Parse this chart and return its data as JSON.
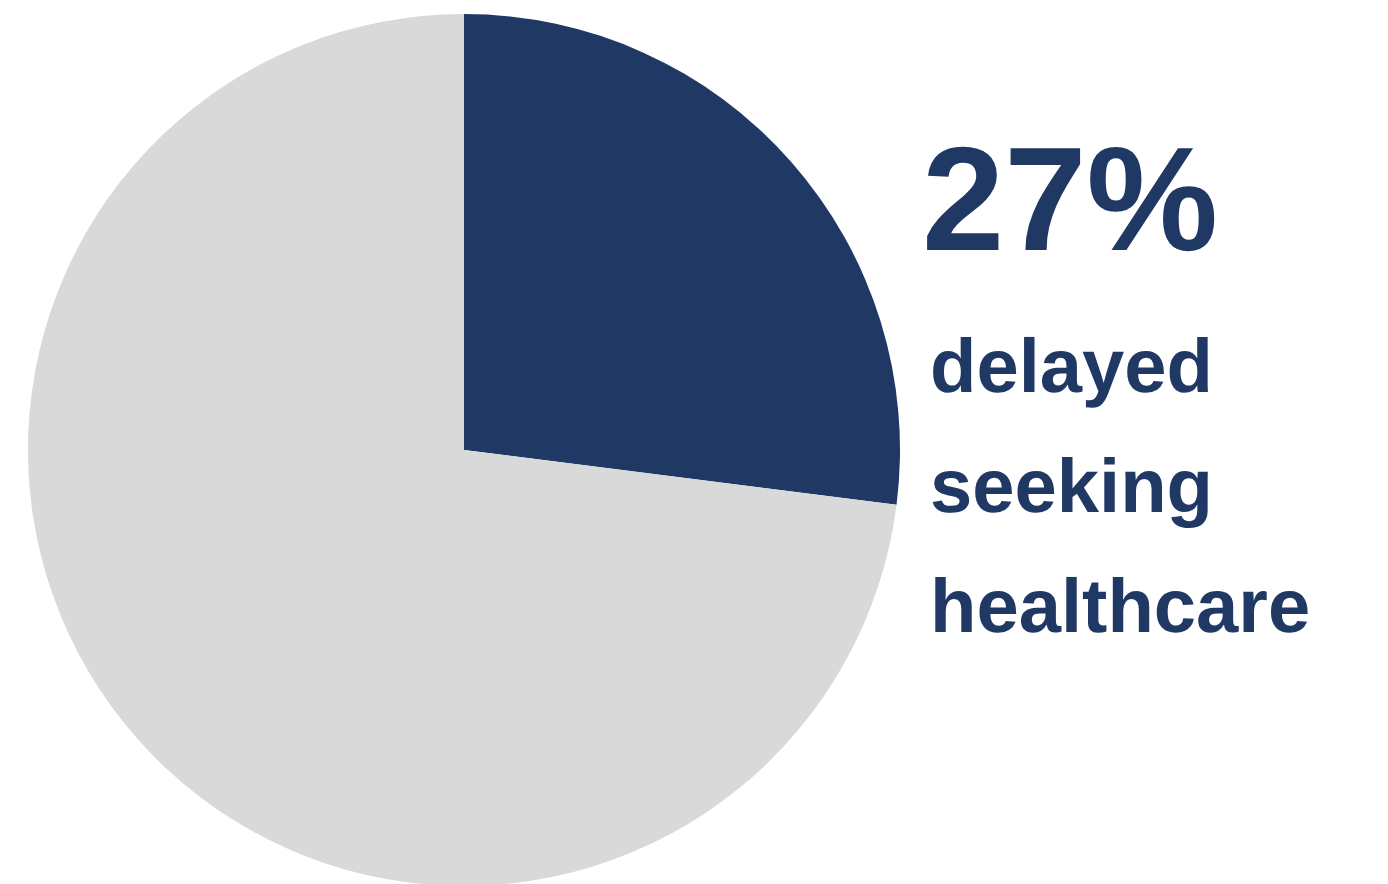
{
  "chart_data": {
    "type": "pie",
    "categories": [
      "delayed seeking healthcare",
      null
    ],
    "values": [
      27,
      73
    ],
    "colors": [
      "#1f3864",
      "#d9d9d9"
    ],
    "value_labels": [
      "27%",
      null
    ],
    "legend": false
  }
}
